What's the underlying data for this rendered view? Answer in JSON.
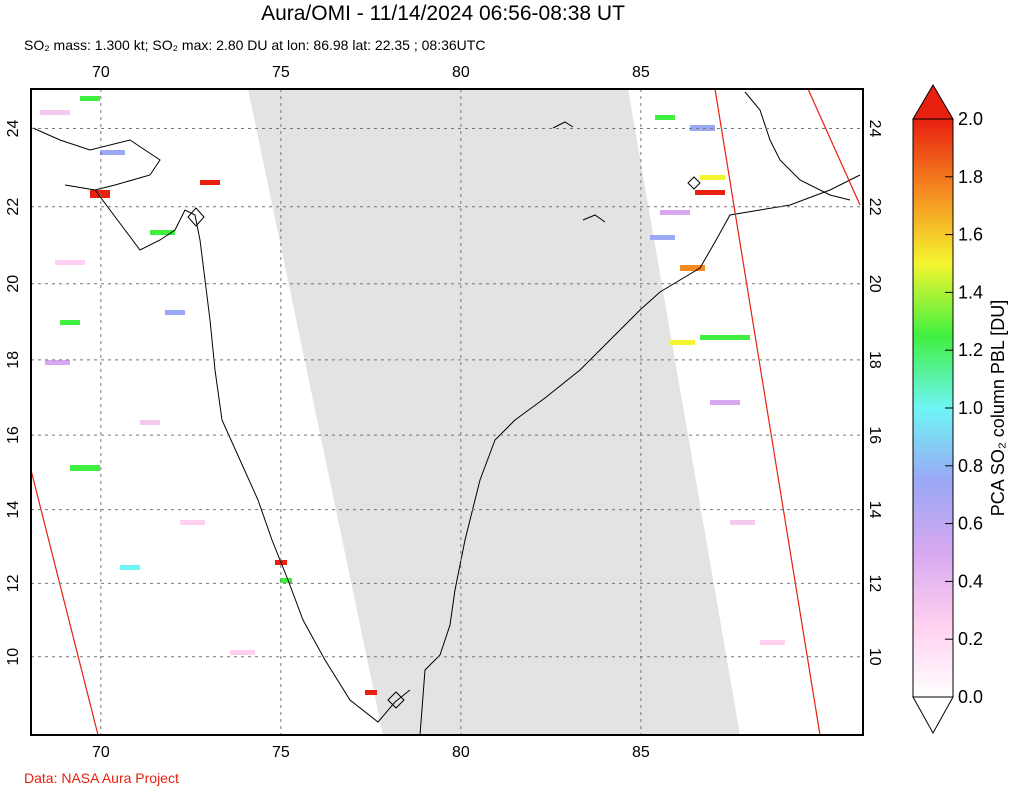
{
  "header": {
    "title": "Aura/OMI - 11/14/2024 06:56-08:38 UT",
    "subtitle": "SO₂ mass: 1.300 kt; SO₂ max: 2.80 DU at lon: 86.98 lat: 22.35 ; 08:36UTC"
  },
  "map": {
    "lonlim": [
      68.06,
      91.17
    ],
    "latlim": [
      7.85,
      25.0
    ],
    "lonticks": [
      70,
      75,
      80,
      85
    ],
    "latticks": [
      10,
      12,
      14,
      16,
      18,
      20,
      22,
      24
    ],
    "grid": true
  },
  "colorbar": {
    "label": "PCA SO₂ column PBL [DU]",
    "lim": [
      0,
      2
    ],
    "ticks": [
      {
        "value": 0,
        "label": "0.0"
      },
      0.2,
      0.4,
      0.6,
      0.8,
      {
        "value": 1,
        "label": "1.0"
      },
      1.2,
      1.4,
      1.6,
      1.8,
      {
        "value": 2,
        "label": "2.0"
      }
    ],
    "colors": [
      "#ffffff",
      "#ffd0f0",
      "#d7a8f0",
      "#9aa8f5",
      "#6ef5f5",
      "#40f040",
      "#f5f530",
      "#f58a20",
      "#e82010"
    ]
  },
  "footer": {
    "credit": "Data: NASA Aura Project"
  }
}
